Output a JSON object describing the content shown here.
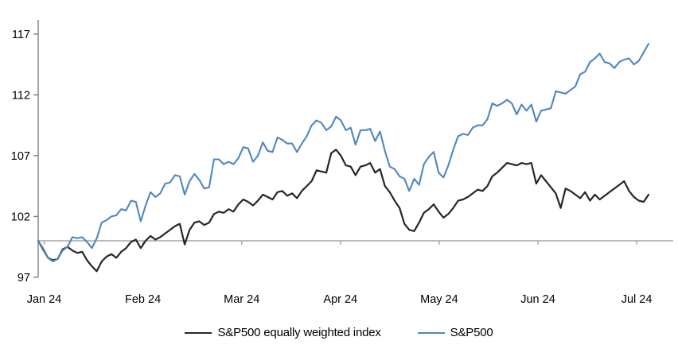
{
  "chart_data": {
    "type": "line",
    "title": "",
    "legend_position": "bottom",
    "grid": false,
    "baseline_value": 100,
    "x_axis": {
      "tick_labels": [
        "Jan 24",
        "Feb 24",
        "Mar 24",
        "Apr 24",
        "May 24",
        "Jun 24",
        "Jul 24"
      ]
    },
    "y_axis": {
      "ticks": [
        97,
        102,
        107,
        112,
        117
      ],
      "ylim": [
        97,
        117
      ]
    },
    "series": [
      {
        "name": "S&P500 equally weighted index",
        "color": "#262626",
        "values": [
          100.0,
          99.3,
          98.6,
          98.4,
          98.5,
          99.3,
          99.5,
          99.2,
          99.0,
          99.1,
          98.4,
          97.9,
          97.5,
          98.3,
          98.7,
          98.9,
          98.6,
          99.1,
          99.4,
          99.9,
          100.1,
          99.4,
          100.0,
          100.4,
          100.1,
          100.3,
          100.6,
          100.9,
          101.2,
          101.4,
          99.7,
          100.9,
          101.5,
          101.6,
          101.3,
          101.5,
          102.2,
          102.4,
          102.3,
          102.6,
          102.4,
          103.0,
          103.4,
          103.2,
          102.9,
          103.3,
          103.8,
          103.6,
          103.4,
          104.0,
          104.1,
          103.7,
          103.9,
          103.5,
          104.1,
          104.5,
          104.9,
          105.8,
          105.7,
          105.6,
          107.2,
          107.5,
          107.0,
          106.2,
          106.1,
          105.4,
          106.1,
          106.2,
          106.4,
          105.6,
          105.9,
          104.5,
          104.0,
          103.3,
          102.7,
          101.4,
          100.9,
          100.8,
          101.5,
          102.3,
          102.6,
          103.0,
          102.4,
          101.9,
          102.2,
          102.7,
          103.3,
          103.4,
          103.6,
          103.9,
          104.2,
          104.1,
          104.5,
          105.3,
          105.6,
          106.0,
          106.4,
          106.3,
          106.2,
          106.4,
          106.3,
          106.4,
          104.7,
          105.4,
          104.9,
          104.4,
          103.9,
          102.7,
          104.3,
          104.1,
          103.8,
          103.5,
          104.0,
          103.3,
          103.8,
          103.4,
          103.7,
          104.0,
          104.3,
          104.6,
          104.9,
          104.1,
          103.6,
          103.3,
          103.2,
          103.8
        ]
      },
      {
        "name": "S&P500",
        "color": "#4e87bf",
        "values": [
          100.0,
          99.4,
          98.6,
          98.3,
          98.5,
          99.2,
          99.5,
          100.3,
          100.2,
          100.3,
          99.9,
          99.4,
          100.2,
          101.5,
          101.7,
          102.0,
          102.1,
          102.6,
          102.5,
          103.3,
          103.2,
          101.6,
          102.9,
          104.0,
          103.6,
          103.9,
          104.7,
          104.8,
          105.4,
          105.3,
          103.8,
          104.9,
          105.5,
          105.0,
          104.3,
          104.4,
          106.7,
          106.7,
          106.3,
          106.5,
          106.3,
          106.8,
          107.7,
          107.6,
          106.5,
          107.0,
          108.1,
          107.4,
          107.3,
          108.5,
          108.3,
          108.0,
          108.0,
          107.3,
          108.0,
          108.6,
          109.5,
          109.9,
          109.7,
          109.1,
          109.4,
          110.2,
          109.9,
          109.1,
          109.3,
          107.9,
          109.1,
          109.1,
          109.2,
          108.2,
          109.0,
          107.4,
          106.1,
          105.9,
          105.3,
          105.1,
          104.1,
          105.1,
          104.6,
          106.3,
          106.9,
          107.3,
          105.6,
          105.2,
          106.2,
          107.5,
          108.6,
          108.8,
          108.7,
          109.3,
          109.5,
          109.5,
          110.0,
          111.3,
          111.1,
          111.3,
          111.6,
          111.3,
          110.4,
          111.2,
          110.7,
          111.2,
          109.8,
          110.7,
          110.8,
          110.9,
          112.3,
          112.2,
          112.1,
          112.4,
          112.7,
          113.7,
          113.9,
          114.7,
          115.0,
          115.4,
          114.7,
          114.6,
          114.2,
          114.7,
          114.9,
          115.0,
          114.5,
          114.8,
          115.5,
          116.2
        ]
      }
    ]
  },
  "colors": {
    "axis_line": "#808080",
    "baseline": "#a6a6a6",
    "tick_text": "#000000",
    "background": "#ffffff"
  }
}
